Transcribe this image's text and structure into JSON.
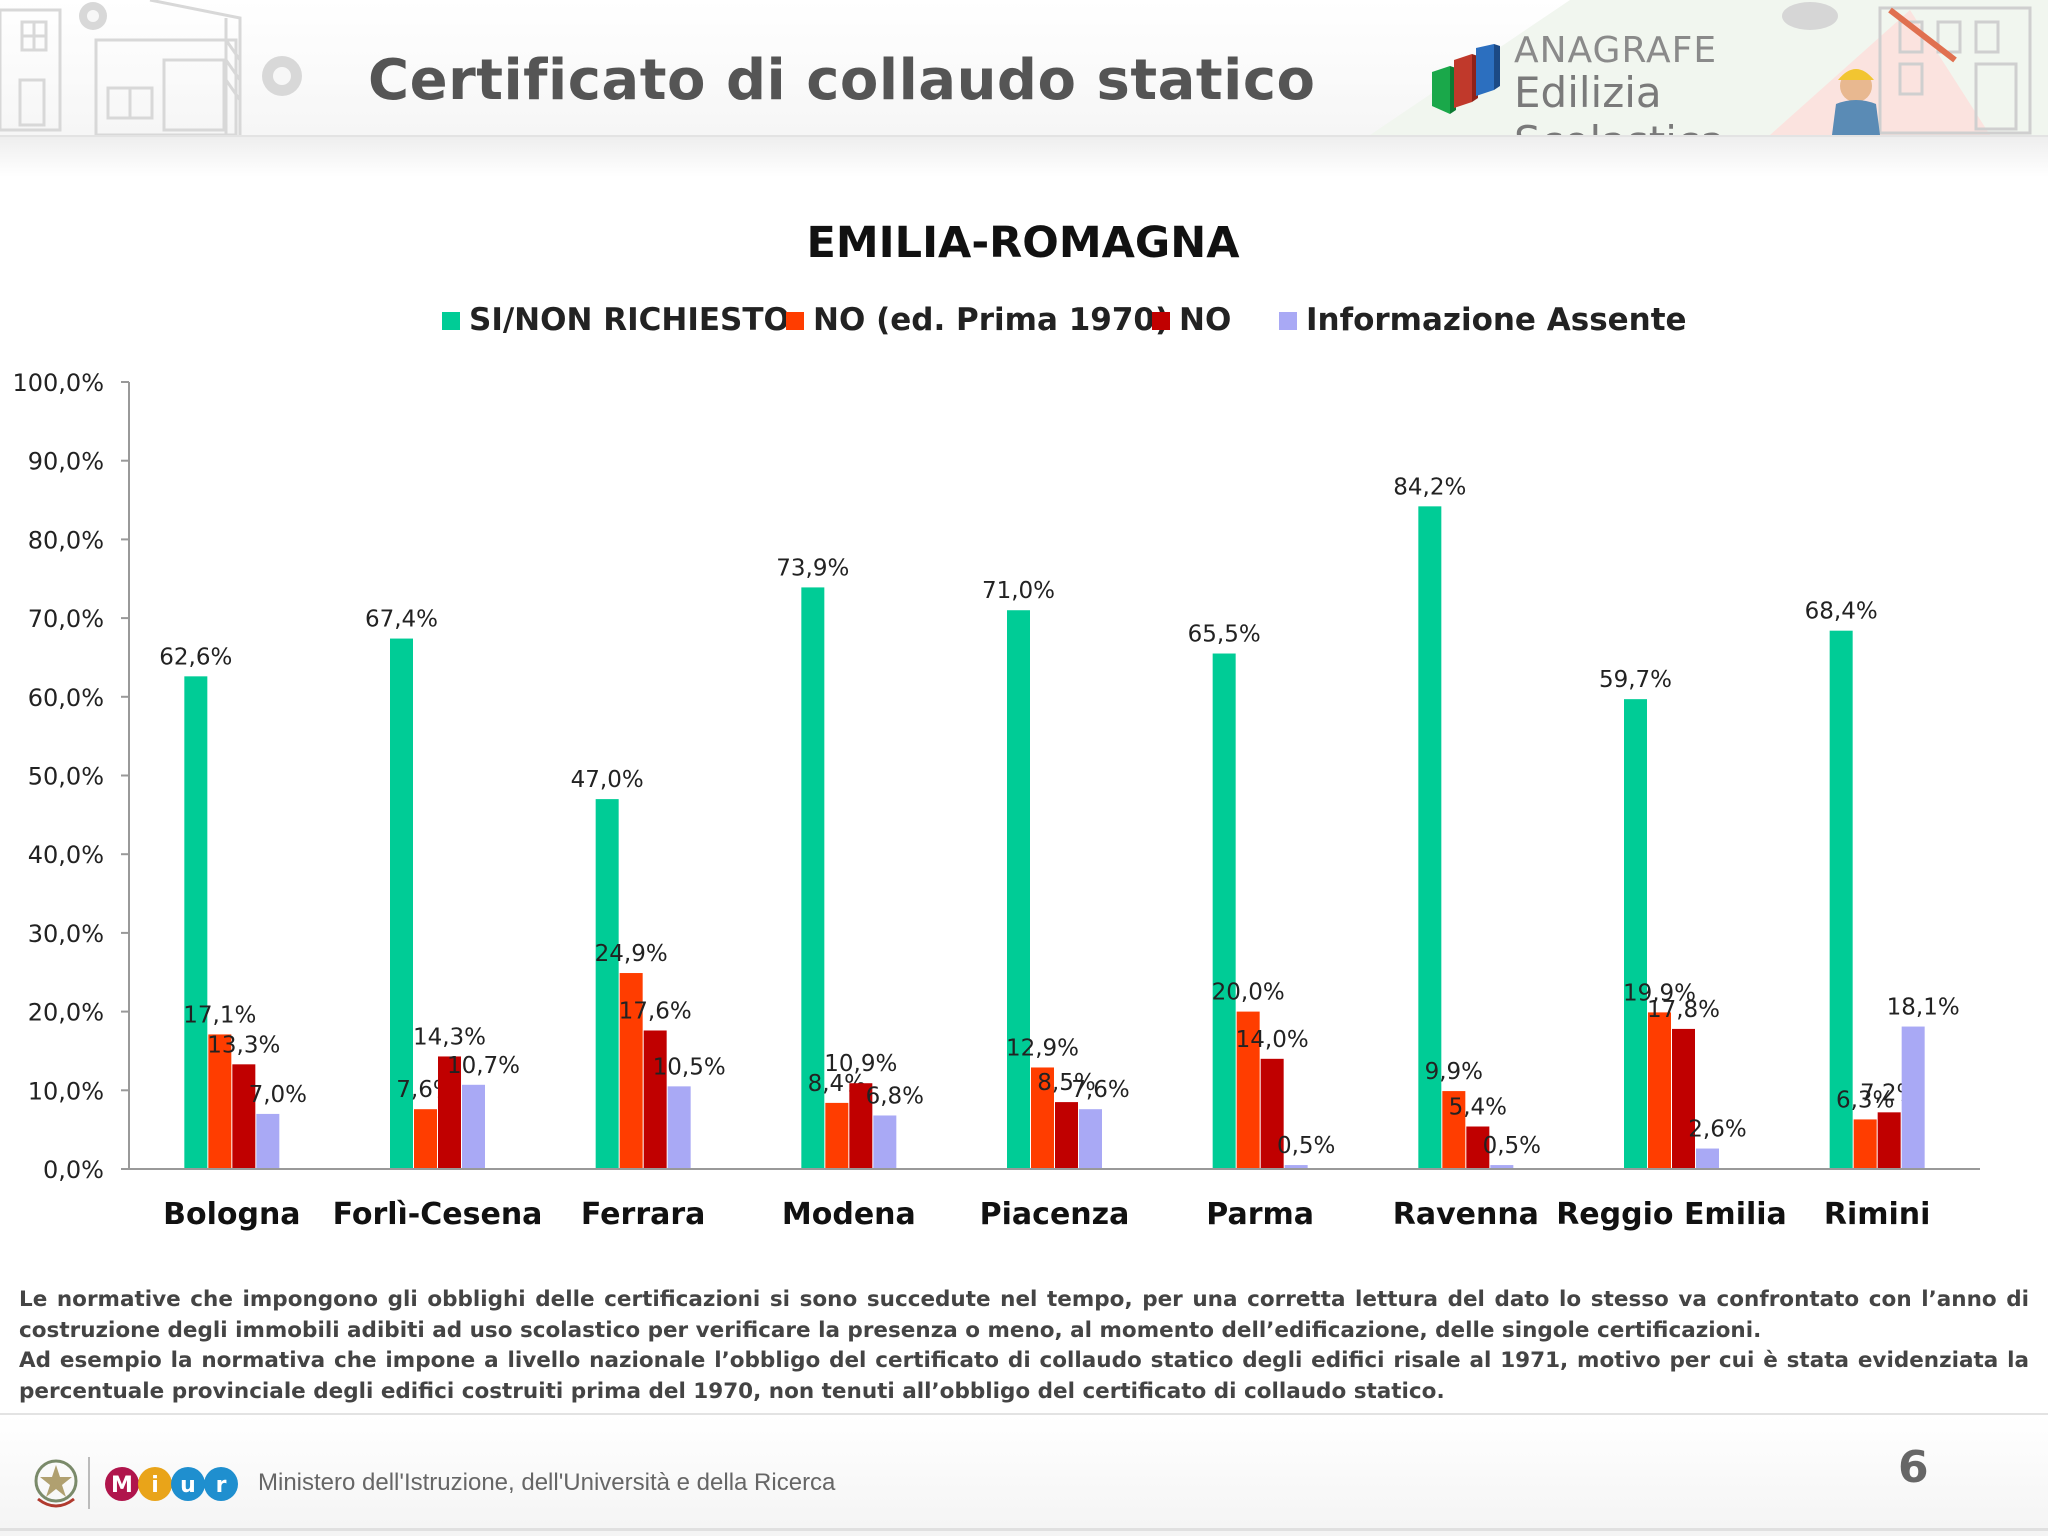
{
  "header": {
    "title": "Certificato di collaudo statico",
    "brand_top": "ANAGRAFE",
    "brand_bottom": "Edilizia Scolastica"
  },
  "chart_data": {
    "type": "bar",
    "title": "EMILIA-ROMAGNA",
    "xlabel": "",
    "ylabel": "",
    "ylim": [
      0,
      100
    ],
    "yticks": [
      "0,0%",
      "10,0%",
      "20,0%",
      "30,0%",
      "40,0%",
      "50,0%",
      "60,0%",
      "70,0%",
      "80,0%",
      "90,0%",
      "100,0%"
    ],
    "grid": false,
    "legend_position": "top-center",
    "categories": [
      "Bologna",
      "Forlì-Cesena",
      "Ferrara",
      "Modena",
      "Piacenza",
      "Parma",
      "Ravenna",
      "Reggio Emilia",
      "Rimini"
    ],
    "series": [
      {
        "name": "SI/NON RICHIESTO",
        "color": "#00CC96",
        "values": [
          62.6,
          67.4,
          47.0,
          73.9,
          71.0,
          65.5,
          84.2,
          59.7,
          68.4
        ],
        "labels": [
          "62,6%",
          "67,4%",
          "47,0%",
          "73,9%",
          "71,0%",
          "65,5%",
          "84,2%",
          "59,7%",
          "68,4%"
        ]
      },
      {
        "name": "NO (ed. Prima 1970)",
        "color": "#FF3D00",
        "values": [
          17.1,
          7.6,
          24.9,
          8.4,
          12.9,
          20.0,
          9.9,
          19.9,
          6.3
        ],
        "labels": [
          "17,1%",
          "7,6%",
          "24,9%",
          "8,4%",
          "12,9%",
          "20,0%",
          "9,9%",
          "19,9%",
          "6,3%"
        ]
      },
      {
        "name": "NO",
        "color": "#C00000",
        "values": [
          13.3,
          14.3,
          17.6,
          10.9,
          8.5,
          14.0,
          5.4,
          17.8,
          7.2
        ],
        "labels": [
          "13,3%",
          "14,3%",
          "17,6%",
          "10,9%",
          "8,5%",
          "14,0%",
          "5,4%",
          "17,8%",
          "7,2%"
        ]
      },
      {
        "name": "Informazione Assente",
        "color": "#A9A9F5",
        "values": [
          7.0,
          10.7,
          10.5,
          6.8,
          7.6,
          0.5,
          0.5,
          2.6,
          18.1
        ],
        "labels": [
          "7,0%",
          "10,7%",
          "10,5%",
          "6,8%",
          "7,6%",
          "0,5%",
          "0,5%",
          "2,6%",
          "18,1%"
        ]
      }
    ]
  },
  "note": {
    "p1": "Le normative che impongono gli obblighi delle certificazioni si sono succedute nel tempo, per una corretta lettura del dato lo stesso va confrontato con l’anno di costruzione degli immobili adibiti ad uso scolastico per verificare la presenza o meno, al momento dell’edificazione, delle singole certificazioni.",
    "p2": "Ad esempio la normativa che impone a livello nazionale l’obbligo del certificato di collaudo statico degli edifici risale al 1971, motivo per cui è stata evidenziata la percentuale provinciale degli edifici costruiti prima del 1970, non tenuti all’obbligo del certificato di collaudo statico."
  },
  "footer": {
    "ministry": "Ministero dell'Istruzione, dell'Università e della Ricerca",
    "page": "6",
    "miur_letters": [
      "M",
      "i",
      "u",
      "r"
    ]
  },
  "icons": [
    "building-sketch-icon",
    "gear-icon",
    "anagrafe-logo-icon",
    "worker-illustration-icon",
    "republic-emblem-icon",
    "miur-logo-icon"
  ]
}
